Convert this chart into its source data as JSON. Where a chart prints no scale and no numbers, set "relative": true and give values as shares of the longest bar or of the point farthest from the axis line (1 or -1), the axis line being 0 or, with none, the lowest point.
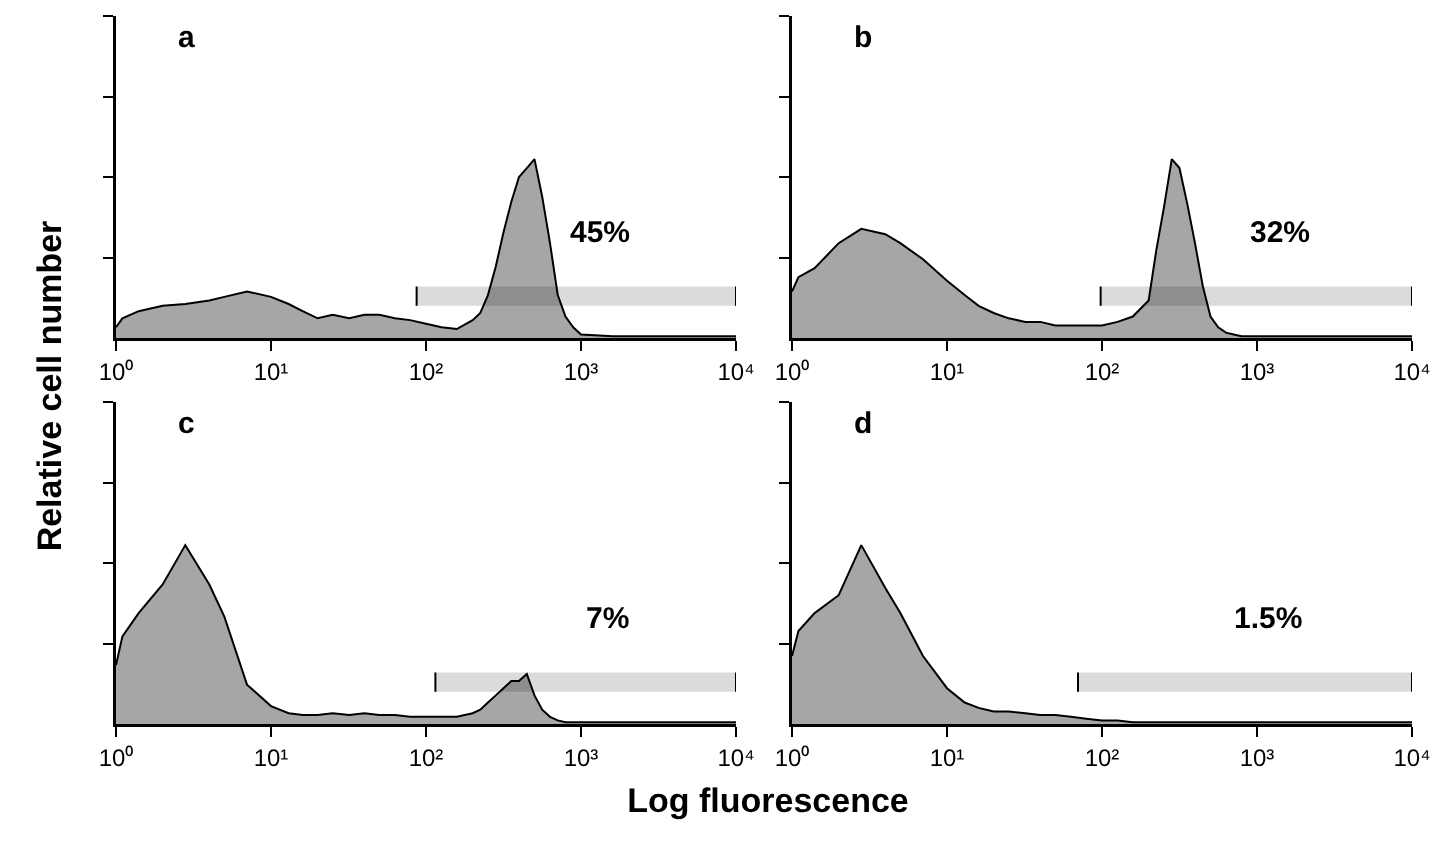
{
  "chart_data": [
    {
      "type": "area",
      "title": "a",
      "ylabel": "Relative cell number",
      "relative": true,
      "tick_labels": "x",
      "xlim": [
        1,
        10000
      ],
      "log": "x",
      "xticks": [
        {
          "value": 1,
          "label": "10⁰"
        },
        {
          "value": 10,
          "label": "10¹"
        },
        {
          "value": 100,
          "label": "10²"
        },
        {
          "value": 1000,
          "label": "10³"
        },
        {
          "value": 10000,
          "label": "10⁴"
        }
      ],
      "x": [
        1,
        1.1,
        1.4,
        2,
        2.8,
        4,
        5,
        7,
        10,
        13,
        16,
        20,
        25,
        32,
        40,
        50,
        63,
        79,
        100,
        126,
        158,
        200,
        224,
        251,
        282,
        316,
        355,
        398,
        447,
        501,
        562,
        631,
        708,
        794,
        891,
        1000,
        1600,
        4000,
        10000
      ],
      "series": [
        {
          "color": "#a6a6a6",
          "values": [
            0.06,
            0.11,
            0.15,
            0.18,
            0.19,
            0.21,
            0.23,
            0.26,
            0.23,
            0.19,
            0.15,
            0.11,
            0.13,
            0.11,
            0.13,
            0.13,
            0.11,
            0.1,
            0.08,
            0.06,
            0.05,
            0.1,
            0.14,
            0.24,
            0.4,
            0.59,
            0.76,
            0.9,
            0.95,
            1.0,
            0.79,
            0.53,
            0.24,
            0.12,
            0.06,
            0.02,
            0.01,
            0.01,
            0.01
          ]
        }
      ],
      "bands": [
        {
          "axis": "x",
          "from": 87,
          "to": 10000,
          "label": "45%"
        }
      ]
    },
    {
      "type": "area",
      "title": "b",
      "relative": true,
      "tick_labels": "x",
      "xlim": [
        1,
        10000
      ],
      "log": "x",
      "xticks": [
        {
          "value": 1,
          "label": "10⁰"
        },
        {
          "value": 10,
          "label": "10¹"
        },
        {
          "value": 100,
          "label": "10²"
        },
        {
          "value": 1000,
          "label": "10³"
        },
        {
          "value": 10000,
          "label": "10⁴"
        }
      ],
      "x": [
        1,
        1.1,
        1.4,
        2,
        2.8,
        4,
        5,
        7,
        10,
        13,
        16,
        20,
        25,
        32,
        40,
        50,
        63,
        79,
        100,
        126,
        158,
        200,
        224,
        251,
        282,
        316,
        355,
        398,
        447,
        501,
        562,
        631,
        708,
        794,
        891,
        1000,
        1600,
        4000,
        10000
      ],
      "series": [
        {
          "color": "#a6a6a6",
          "values": [
            0.26,
            0.34,
            0.39,
            0.53,
            0.61,
            0.58,
            0.53,
            0.44,
            0.32,
            0.24,
            0.18,
            0.14,
            0.11,
            0.09,
            0.09,
            0.07,
            0.07,
            0.07,
            0.07,
            0.09,
            0.12,
            0.21,
            0.49,
            0.73,
            1.0,
            0.95,
            0.75,
            0.53,
            0.29,
            0.12,
            0.06,
            0.03,
            0.02,
            0.01,
            0.01,
            0.01,
            0.01,
            0.01,
            0.01
          ]
        }
      ],
      "bands": [
        {
          "axis": "x",
          "from": 98,
          "to": 10000,
          "label": "32%"
        }
      ]
    },
    {
      "type": "area",
      "title": "c",
      "xlabel": "Log fluorescence",
      "relative": true,
      "tick_labels": "x",
      "xlim": [
        1,
        10000
      ],
      "log": "x",
      "xticks": [
        {
          "value": 1,
          "label": "10⁰"
        },
        {
          "value": 10,
          "label": "10¹"
        },
        {
          "value": 100,
          "label": "10²"
        },
        {
          "value": 1000,
          "label": "10³"
        },
        {
          "value": 10000,
          "label": "10⁴"
        }
      ],
      "x": [
        1,
        1.1,
        1.4,
        2,
        2.8,
        4,
        5,
        7,
        10,
        13,
        16,
        20,
        25,
        32,
        40,
        50,
        63,
        79,
        100,
        126,
        158,
        200,
        224,
        251,
        282,
        316,
        355,
        398,
        447,
        501,
        562,
        631,
        708,
        794,
        891,
        1000,
        1600,
        4000,
        10000
      ],
      "series": [
        {
          "color": "#a6a6a6",
          "values": [
            0.33,
            0.49,
            0.62,
            0.78,
            1.0,
            0.78,
            0.6,
            0.22,
            0.1,
            0.06,
            0.05,
            0.05,
            0.06,
            0.05,
            0.06,
            0.05,
            0.05,
            0.04,
            0.04,
            0.04,
            0.04,
            0.06,
            0.08,
            0.12,
            0.16,
            0.2,
            0.24,
            0.24,
            0.28,
            0.16,
            0.08,
            0.04,
            0.02,
            0.01,
            0.01,
            0.01,
            0.01,
            0.01,
            0.01
          ]
        }
      ],
      "bands": [
        {
          "axis": "x",
          "from": 115,
          "to": 10000,
          "label": "7%"
        }
      ]
    },
    {
      "type": "area",
      "title": "d",
      "relative": true,
      "tick_labels": "x",
      "xlim": [
        1,
        10000
      ],
      "log": "x",
      "xticks": [
        {
          "value": 1,
          "label": "10⁰"
        },
        {
          "value": 10,
          "label": "10¹"
        },
        {
          "value": 100,
          "label": "10²"
        },
        {
          "value": 1000,
          "label": "10³"
        },
        {
          "value": 10000,
          "label": "10⁴"
        }
      ],
      "x": [
        1,
        1.1,
        1.4,
        2,
        2.8,
        4,
        5,
        7,
        10,
        13,
        16,
        20,
        25,
        32,
        40,
        50,
        63,
        79,
        100,
        126,
        158,
        200,
        224,
        251,
        282,
        316,
        355,
        398,
        447,
        501,
        562,
        631,
        708,
        794,
        891,
        1000,
        1600,
        4000,
        10000
      ],
      "series": [
        {
          "color": "#a6a6a6",
          "values": [
            0.38,
            0.52,
            0.62,
            0.72,
            1.0,
            0.76,
            0.62,
            0.38,
            0.2,
            0.12,
            0.09,
            0.07,
            0.07,
            0.06,
            0.05,
            0.05,
            0.04,
            0.03,
            0.02,
            0.02,
            0.01,
            0.01,
            0.01,
            0.01,
            0.01,
            0.01,
            0.01,
            0.01,
            0.01,
            0.01,
            0.01,
            0.01,
            0.01,
            0.01,
            0.01,
            0.01,
            0.01,
            0.01,
            0.01
          ]
        }
      ],
      "bands": [
        {
          "axis": "x",
          "from": 70,
          "to": 10000,
          "label": "1.5%"
        }
      ]
    }
  ]
}
